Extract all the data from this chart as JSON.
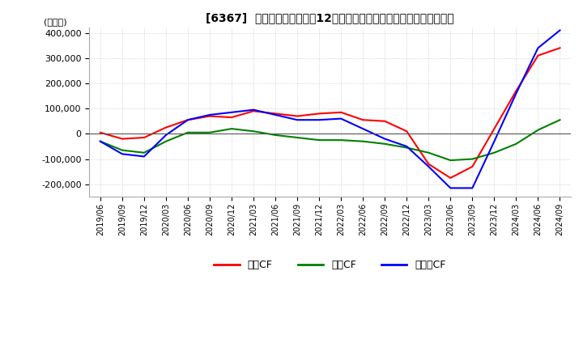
{
  "title": "[6367]  キャッシュフローの12か月移動合計の対前年同期増減額の推移",
  "ylabel": "(百万円)",
  "ylim": [
    -250000,
    420000
  ],
  "yticks": [
    -200000,
    -100000,
    0,
    100000,
    200000,
    300000,
    400000
  ],
  "legend_labels": [
    "営業CF",
    "投資CF",
    "フリーCF"
  ],
  "line_colors": [
    "#ff0000",
    "#008000",
    "#0000ff"
  ],
  "background_color": "#ffffff",
  "grid_color": "#bbbbbb",
  "x_labels": [
    "2019/06",
    "2019/09",
    "2019/12",
    "2020/03",
    "2020/06",
    "2020/09",
    "2020/12",
    "2021/03",
    "2021/06",
    "2021/09",
    "2021/12",
    "2022/03",
    "2022/06",
    "2022/09",
    "2022/12",
    "2023/03",
    "2023/06",
    "2023/09",
    "2023/12",
    "2024/03",
    "2024/06",
    "2024/09"
  ],
  "operating_cf": [
    5000,
    -20000,
    -15000,
    25000,
    55000,
    70000,
    65000,
    90000,
    80000,
    70000,
    80000,
    85000,
    55000,
    50000,
    10000,
    -120000,
    -175000,
    -130000,
    20000,
    170000,
    310000,
    340000
  ],
  "investing_cf": [
    -30000,
    -65000,
    -75000,
    -30000,
    5000,
    5000,
    20000,
    10000,
    -5000,
    -15000,
    -25000,
    -25000,
    -30000,
    -40000,
    -55000,
    -75000,
    -105000,
    -100000,
    -75000,
    -40000,
    15000,
    55000
  ],
  "free_cf": [
    -30000,
    -80000,
    -90000,
    -5000,
    55000,
    75000,
    85000,
    95000,
    75000,
    55000,
    55000,
    60000,
    20000,
    -20000,
    -50000,
    -130000,
    -215000,
    -215000,
    -30000,
    160000,
    340000,
    410000
  ]
}
